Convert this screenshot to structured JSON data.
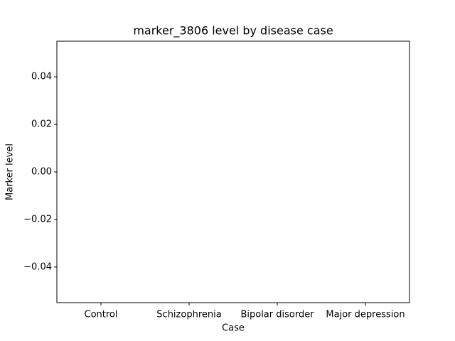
{
  "chart_data": {
    "type": "bar",
    "title": "marker_3806 level by disease case",
    "x_label": "Case",
    "y_label": "Marker level",
    "categories": [
      "Control",
      "Schizophrenia",
      "Bipolar disorder",
      "Major depression"
    ],
    "ylim": [
      -0.055,
      0.055
    ],
    "yticks": [
      {
        "value": -0.04,
        "label": "−0.04"
      },
      {
        "value": -0.02,
        "label": "−0.02"
      },
      {
        "value": 0,
        "label": "0.00"
      },
      0.02,
      0.04
    ],
    "grid": false
  }
}
